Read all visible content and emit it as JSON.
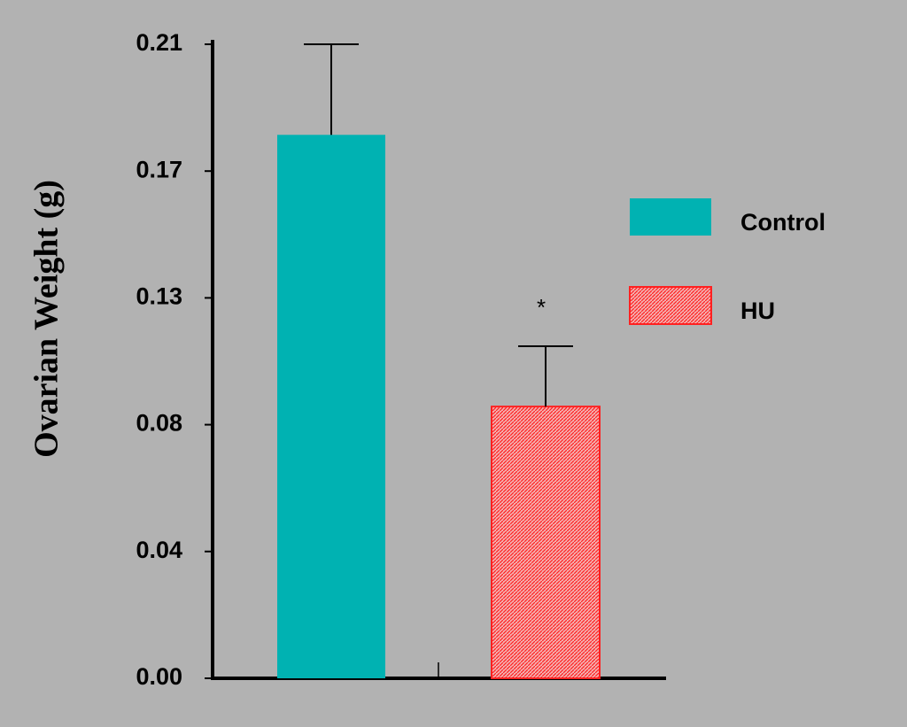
{
  "chart_data": {
    "type": "bar",
    "y_label": "Ovarian Weight (g)",
    "categories": [
      null
    ],
    "series": [
      {
        "name": "Control",
        "color": "#00b2b2",
        "values": [
          0.18
        ],
        "errors": [
          0.03
        ]
      },
      {
        "name": "HU",
        "color": "#ff2020",
        "values": [
          0.09
        ],
        "errors": [
          0.02
        ]
      }
    ],
    "annotations": [
      {
        "text": "*",
        "series": 1
      }
    ],
    "ylim": [
      0,
      0.21
    ],
    "yticks": [
      {
        "value": 0,
        "label": "0.00"
      },
      {
        "value": 0.042,
        "label": "0.04"
      },
      {
        "value": 0.084,
        "label": "0.08"
      },
      {
        "value": 0.126,
        "label": "0.13"
      },
      {
        "value": 0.168,
        "label": "0.17"
      },
      0.21
    ],
    "legend": "right"
  }
}
